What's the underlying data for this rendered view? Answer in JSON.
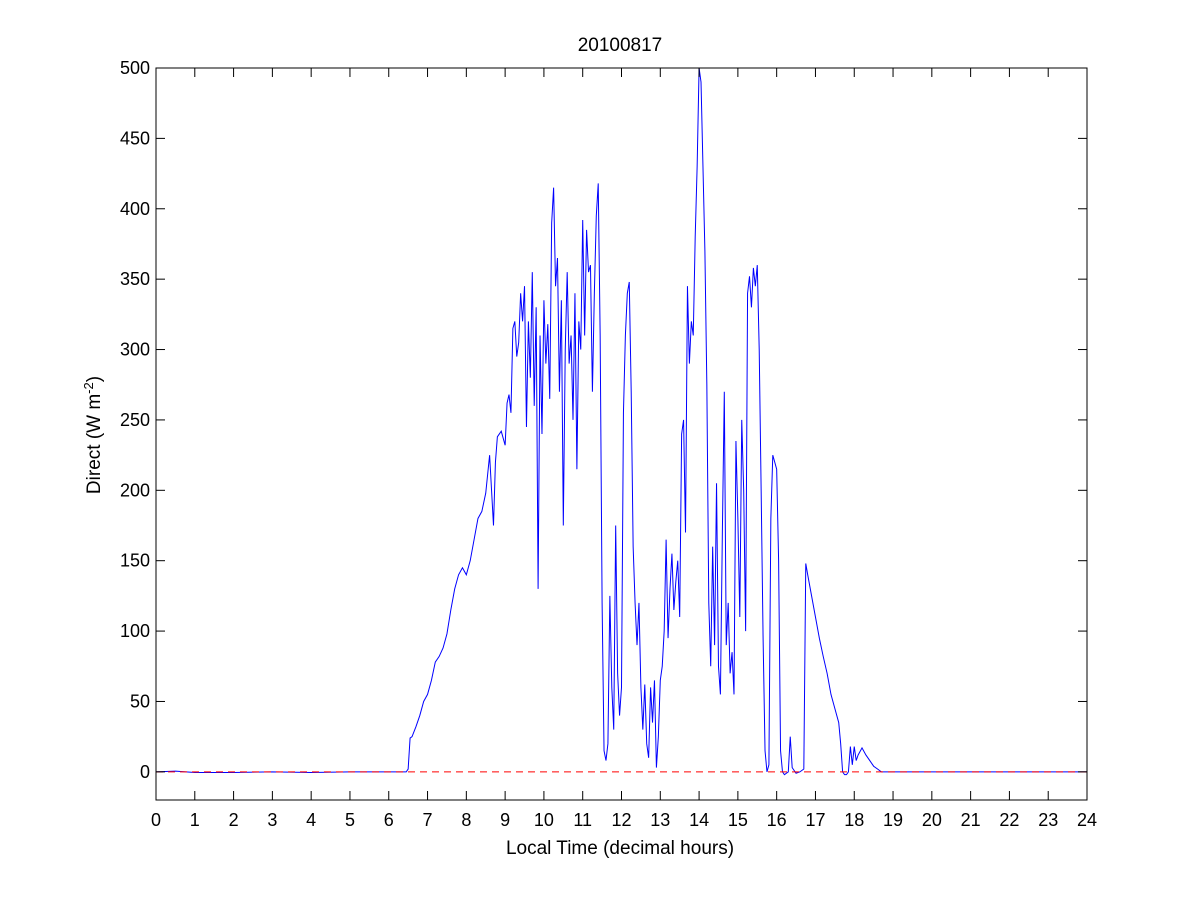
{
  "chart_data": {
    "type": "line",
    "title": "20100817",
    "xlabel": "Local Time (decimal hours)",
    "ylabel": {
      "prefix": "Direct (W m",
      "superscript": "-2",
      "suffix": ")"
    },
    "xlim": [
      0,
      24
    ],
    "ylim": [
      -20,
      500
    ],
    "xticks": [
      0,
      1,
      2,
      3,
      4,
      5,
      6,
      7,
      8,
      9,
      10,
      11,
      12,
      13,
      14,
      15,
      16,
      17,
      18,
      19,
      20,
      21,
      22,
      23,
      24
    ],
    "yticks": [
      0,
      50,
      100,
      150,
      200,
      250,
      300,
      350,
      400,
      450,
      500
    ],
    "grid": false,
    "series": [
      {
        "color": "#0000ff",
        "style": "solid",
        "points": [
          [
            0.0,
            0
          ],
          [
            0.5,
            0.5
          ],
          [
            1.0,
            -0.5
          ],
          [
            2.0,
            -0.5
          ],
          [
            3.0,
            0
          ],
          [
            4.0,
            -0.5
          ],
          [
            5.0,
            0
          ],
          [
            6.0,
            0
          ],
          [
            6.45,
            0
          ],
          [
            6.5,
            2
          ],
          [
            6.55,
            24
          ],
          [
            6.6,
            25
          ],
          [
            6.7,
            32
          ],
          [
            6.8,
            40
          ],
          [
            6.9,
            50
          ],
          [
            7.0,
            55
          ],
          [
            7.1,
            65
          ],
          [
            7.2,
            78
          ],
          [
            7.3,
            82
          ],
          [
            7.4,
            88
          ],
          [
            7.5,
            98
          ],
          [
            7.6,
            115
          ],
          [
            7.7,
            130
          ],
          [
            7.8,
            140
          ],
          [
            7.9,
            145
          ],
          [
            8.0,
            140
          ],
          [
            8.1,
            150
          ],
          [
            8.2,
            165
          ],
          [
            8.3,
            180
          ],
          [
            8.4,
            185
          ],
          [
            8.5,
            198
          ],
          [
            8.6,
            225
          ],
          [
            8.7,
            175
          ],
          [
            8.75,
            220
          ],
          [
            8.8,
            238
          ],
          [
            8.9,
            242
          ],
          [
            9.0,
            232
          ],
          [
            9.05,
            262
          ],
          [
            9.1,
            268
          ],
          [
            9.15,
            255
          ],
          [
            9.2,
            315
          ],
          [
            9.25,
            320
          ],
          [
            9.3,
            295
          ],
          [
            9.35,
            305
          ],
          [
            9.4,
            340
          ],
          [
            9.45,
            320
          ],
          [
            9.5,
            345
          ],
          [
            9.55,
            245
          ],
          [
            9.6,
            320
          ],
          [
            9.65,
            280
          ],
          [
            9.7,
            355
          ],
          [
            9.75,
            260
          ],
          [
            9.8,
            330
          ],
          [
            9.85,
            130
          ],
          [
            9.9,
            310
          ],
          [
            9.95,
            240
          ],
          [
            10.0,
            335
          ],
          [
            10.05,
            290
          ],
          [
            10.1,
            318
          ],
          [
            10.15,
            265
          ],
          [
            10.2,
            390
          ],
          [
            10.25,
            415
          ],
          [
            10.3,
            345
          ],
          [
            10.35,
            365
          ],
          [
            10.4,
            270
          ],
          [
            10.45,
            335
          ],
          [
            10.5,
            175
          ],
          [
            10.55,
            300
          ],
          [
            10.6,
            355
          ],
          [
            10.65,
            290
          ],
          [
            10.7,
            310
          ],
          [
            10.75,
            250
          ],
          [
            10.8,
            340
          ],
          [
            10.85,
            215
          ],
          [
            10.9,
            320
          ],
          [
            10.95,
            300
          ],
          [
            11.0,
            392
          ],
          [
            11.05,
            310
          ],
          [
            11.1,
            385
          ],
          [
            11.15,
            355
          ],
          [
            11.2,
            360
          ],
          [
            11.25,
            270
          ],
          [
            11.3,
            340
          ],
          [
            11.35,
            395
          ],
          [
            11.4,
            418
          ],
          [
            11.45,
            310
          ],
          [
            11.5,
            120
          ],
          [
            11.55,
            15
          ],
          [
            11.6,
            8
          ],
          [
            11.65,
            20
          ],
          [
            11.7,
            125
          ],
          [
            11.75,
            60
          ],
          [
            11.8,
            30
          ],
          [
            11.85,
            175
          ],
          [
            11.9,
            70
          ],
          [
            11.95,
            40
          ],
          [
            12.0,
            60
          ],
          [
            12.05,
            255
          ],
          [
            12.1,
            310
          ],
          [
            12.15,
            340
          ],
          [
            12.2,
            348
          ],
          [
            12.25,
            270
          ],
          [
            12.3,
            160
          ],
          [
            12.35,
            120
          ],
          [
            12.4,
            90
          ],
          [
            12.45,
            120
          ],
          [
            12.5,
            60
          ],
          [
            12.55,
            30
          ],
          [
            12.6,
            62
          ],
          [
            12.65,
            20
          ],
          [
            12.7,
            10
          ],
          [
            12.75,
            60
          ],
          [
            12.8,
            35
          ],
          [
            12.85,
            65
          ],
          [
            12.9,
            3
          ],
          [
            12.95,
            25
          ],
          [
            13.0,
            65
          ],
          [
            13.05,
            75
          ],
          [
            13.1,
            100
          ],
          [
            13.15,
            165
          ],
          [
            13.2,
            95
          ],
          [
            13.25,
            130
          ],
          [
            13.3,
            155
          ],
          [
            13.35,
            115
          ],
          [
            13.4,
            135
          ],
          [
            13.45,
            150
          ],
          [
            13.5,
            110
          ],
          [
            13.55,
            240
          ],
          [
            13.6,
            250
          ],
          [
            13.65,
            170
          ],
          [
            13.7,
            345
          ],
          [
            13.75,
            290
          ],
          [
            13.8,
            320
          ],
          [
            13.85,
            310
          ],
          [
            13.9,
            380
          ],
          [
            13.95,
            430
          ],
          [
            14.0,
            500
          ],
          [
            14.05,
            490
          ],
          [
            14.1,
            430
          ],
          [
            14.15,
            370
          ],
          [
            14.2,
            275
          ],
          [
            14.25,
            120
          ],
          [
            14.3,
            75
          ],
          [
            14.35,
            160
          ],
          [
            14.4,
            90
          ],
          [
            14.45,
            205
          ],
          [
            14.5,
            75
          ],
          [
            14.55,
            55
          ],
          [
            14.6,
            170
          ],
          [
            14.65,
            270
          ],
          [
            14.7,
            90
          ],
          [
            14.75,
            120
          ],
          [
            14.8,
            70
          ],
          [
            14.85,
            85
          ],
          [
            14.9,
            55
          ],
          [
            14.95,
            235
          ],
          [
            15.0,
            180
          ],
          [
            15.05,
            110
          ],
          [
            15.1,
            250
          ],
          [
            15.15,
            200
          ],
          [
            15.2,
            100
          ],
          [
            15.25,
            340
          ],
          [
            15.3,
            352
          ],
          [
            15.35,
            330
          ],
          [
            15.4,
            358
          ],
          [
            15.45,
            345
          ],
          [
            15.5,
            360
          ],
          [
            15.55,
            300
          ],
          [
            15.6,
            200
          ],
          [
            15.65,
            95
          ],
          [
            15.7,
            15
          ],
          [
            15.75,
            0
          ],
          [
            15.8,
            5
          ],
          [
            15.85,
            180
          ],
          [
            15.9,
            225
          ],
          [
            15.95,
            220
          ],
          [
            16.0,
            215
          ],
          [
            16.05,
            150
          ],
          [
            16.1,
            15
          ],
          [
            16.15,
            0
          ],
          [
            16.2,
            -2
          ],
          [
            16.3,
            0
          ],
          [
            16.35,
            25
          ],
          [
            16.4,
            3
          ],
          [
            16.5,
            -1
          ],
          [
            16.6,
            0
          ],
          [
            16.7,
            2
          ],
          [
            16.75,
            148
          ],
          [
            16.8,
            140
          ],
          [
            16.9,
            125
          ],
          [
            17.0,
            110
          ],
          [
            17.1,
            95
          ],
          [
            17.2,
            82
          ],
          [
            17.3,
            70
          ],
          [
            17.4,
            55
          ],
          [
            17.5,
            45
          ],
          [
            17.6,
            35
          ],
          [
            17.65,
            20
          ],
          [
            17.7,
            0
          ],
          [
            17.75,
            -2
          ],
          [
            17.8,
            -2
          ],
          [
            17.85,
            0
          ],
          [
            17.9,
            18
          ],
          [
            17.95,
            5
          ],
          [
            18.0,
            18
          ],
          [
            18.05,
            8
          ],
          [
            18.1,
            12
          ],
          [
            18.2,
            17
          ],
          [
            18.3,
            12
          ],
          [
            18.4,
            8
          ],
          [
            18.5,
            4
          ],
          [
            18.6,
            2
          ],
          [
            18.7,
            0
          ],
          [
            19.0,
            0
          ],
          [
            20.0,
            0
          ],
          [
            21.0,
            0
          ],
          [
            22.0,
            0
          ],
          [
            23.0,
            0
          ],
          [
            24.0,
            0
          ]
        ]
      },
      {
        "color": "#ff0000",
        "style": "dashed",
        "points": [
          [
            0,
            0
          ],
          [
            24,
            0
          ]
        ]
      }
    ]
  }
}
